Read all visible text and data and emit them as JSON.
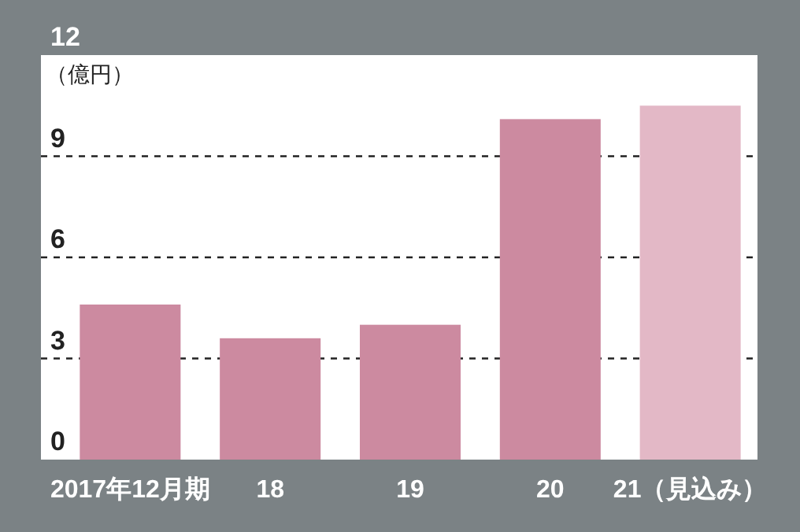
{
  "chart_data": {
    "type": "bar",
    "ylabel": "（億円）",
    "categories": [
      "2017年12月期",
      "18",
      "19",
      "20",
      "21（見込み）"
    ],
    "values": [
      4.6,
      3.6,
      4.0,
      10.1,
      10.5
    ],
    "colors": [
      "#cc8aa0",
      "#cc8aa0",
      "#cc8aa0",
      "#cc8aa0",
      "#e3b8c6"
    ],
    "ylim": [
      0,
      12
    ],
    "yticks": [
      0,
      3,
      6,
      9,
      12
    ],
    "grid": "y"
  }
}
